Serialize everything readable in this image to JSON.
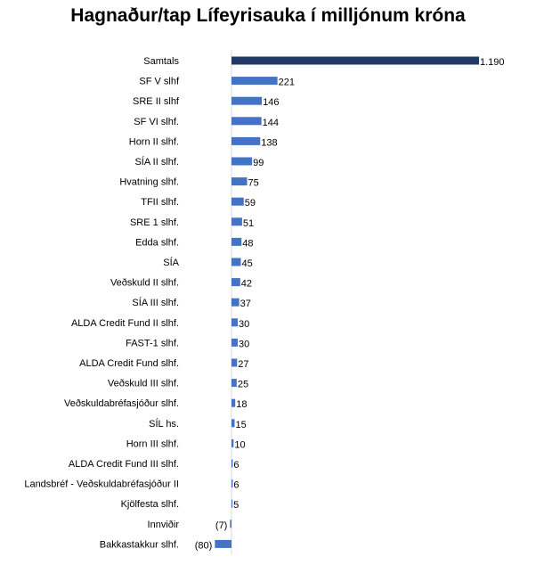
{
  "chart_data": {
    "type": "bar",
    "orientation": "horizontal",
    "title": "Hagnaður/tap Lífeyrisauka í milljónum króna",
    "xlabel": "",
    "ylabel": "",
    "grid": false,
    "legend": "none",
    "categories": [
      "Samtals",
      "SF V slhf",
      "SRE II slhf",
      "SF VI slhf.",
      "Horn II slhf.",
      "SÍA II slhf.",
      "Hvatning slhf.",
      "TFII slhf.",
      "SRE 1 slhf.",
      "Edda slhf.",
      "SÍA",
      "Veðskuld II slhf.",
      "SÍA III slhf.",
      "ALDA Credit Fund II slhf.",
      "FAST-1 slhf.",
      "ALDA Credit Fund slhf.",
      "Veðskuld III slhf.",
      "Veðskuldabréfasjóður slhf.",
      "SÍL hs.",
      "Horn III slhf.",
      "ALDA Credit Fund III slhf.",
      "Landsbréf - Veðskuldabréfasjóður II",
      "Kjölfesta slhf.",
      "Innviðir",
      "Bakkastakkur slhf."
    ],
    "values": [
      1190,
      221,
      146,
      144,
      138,
      99,
      75,
      59,
      51,
      48,
      45,
      42,
      37,
      30,
      30,
      27,
      25,
      18,
      15,
      10,
      6,
      6,
      5,
      -7,
      -80
    ],
    "value_labels": [
      "1.190",
      "221",
      "146",
      "144",
      "138",
      "99",
      "75",
      "59",
      "51",
      "48",
      "45",
      "42",
      "37",
      "30",
      "30",
      "27",
      "25",
      "18",
      "15",
      "10",
      "6",
      "6",
      "5",
      "(7)",
      "(80)"
    ],
    "highlight_index": 0,
    "colors": {
      "highlight": "#1f3864",
      "bar": "#4472c4",
      "axis": "#d9d9d9"
    }
  }
}
